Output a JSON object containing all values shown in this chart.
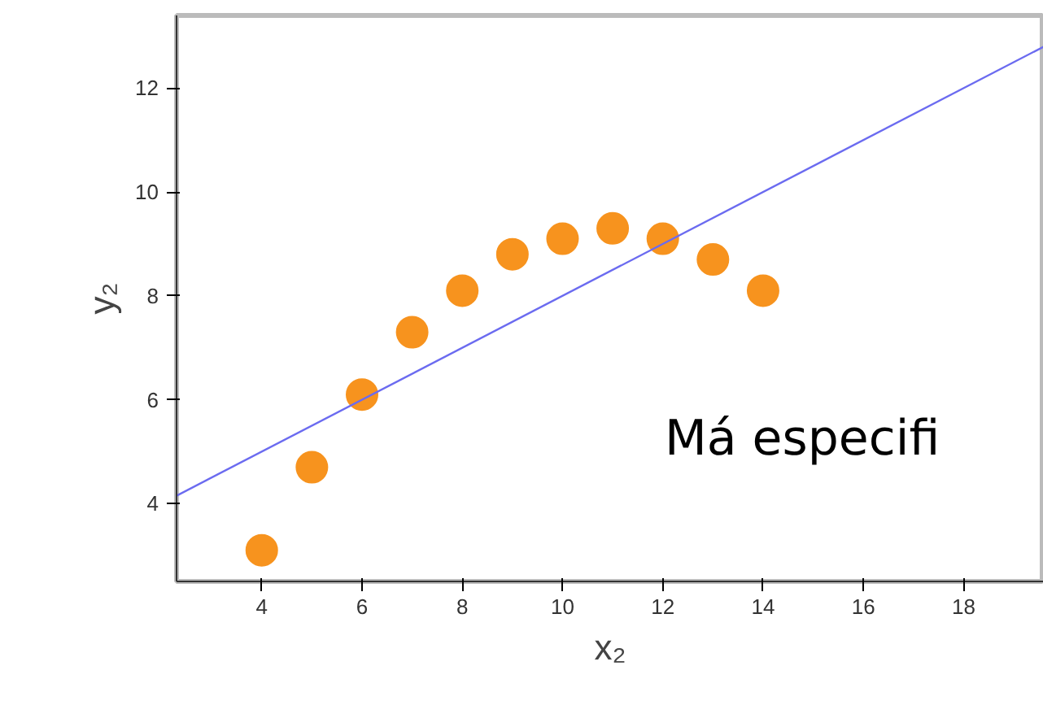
{
  "chart_data": {
    "type": "scatter",
    "xlabel": "x₂",
    "ylabel": "y₂",
    "x": [
      4,
      5,
      6,
      7,
      8,
      9,
      10,
      11,
      12,
      13,
      14
    ],
    "series": [
      {
        "color": "#f7931e",
        "marker": "circle",
        "values": [
          3.1,
          4.7,
          6.1,
          7.3,
          8.1,
          8.8,
          9.1,
          9.3,
          9.1,
          8.7,
          8.1
        ]
      },
      {
        "type": "line",
        "color": "#6b6bf0",
        "x": [
          2.3,
          19.6
        ],
        "values": [
          4.15,
          12.8
        ]
      }
    ],
    "xlim": [
      2.3,
      19.6
    ],
    "ylim": [
      2.5,
      13.4
    ],
    "xticks": [
      4,
      6,
      8,
      10,
      12,
      14,
      16,
      18
    ],
    "yticks": [
      4,
      6,
      8,
      10,
      12
    ],
    "annotations": [
      "Má especifi"
    ]
  }
}
